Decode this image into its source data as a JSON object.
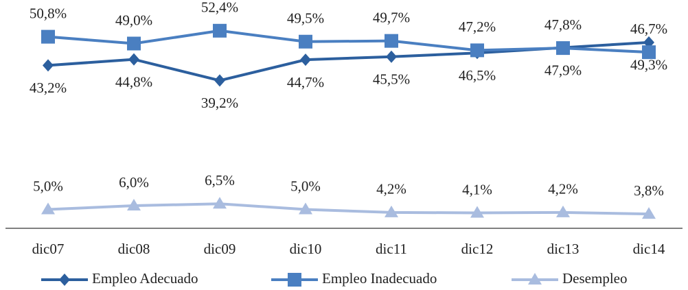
{
  "chart_data": {
    "type": "line",
    "categories": [
      "dic07",
      "dic08",
      "dic09",
      "dic10",
      "dic11",
      "dic12",
      "dic13",
      "dic14"
    ],
    "series": [
      {
        "name": "Empleo Adecuado",
        "color": "#2c5f9e",
        "marker": "diamond",
        "label_position": "below",
        "values": [
          43.2,
          44.8,
          39.2,
          44.7,
          45.5,
          46.5,
          47.9,
          49.3
        ],
        "value_labels": [
          "43,2%",
          "44,8%",
          "39,2%",
          "44,7%",
          "45,5%",
          "46,5%",
          "47,9%",
          "49,3%"
        ]
      },
      {
        "name": "Empleo Inadecuado",
        "color": "#4a7fc1",
        "marker": "square",
        "label_position": "above",
        "values": [
          50.8,
          49.0,
          52.4,
          49.5,
          49.7,
          47.2,
          47.8,
          46.7
        ],
        "value_labels": [
          "50,8%",
          "49,0%",
          "52,4%",
          "49,5%",
          "49,7%",
          "47,2%",
          "47,8%",
          "46,7%"
        ]
      },
      {
        "name": "Desempleo",
        "color": "#a9bcdf",
        "marker": "triangle",
        "label_position": "above",
        "values": [
          5.0,
          6.0,
          6.5,
          5.0,
          4.2,
          4.1,
          4.2,
          3.8
        ],
        "value_labels": [
          "5,0%",
          "6,0%",
          "6,5%",
          "5,0%",
          "4,2%",
          "4,1%",
          "4,2%",
          "3,8%"
        ]
      }
    ],
    "ylim": [
      0,
      55
    ],
    "legend": "bottom"
  }
}
